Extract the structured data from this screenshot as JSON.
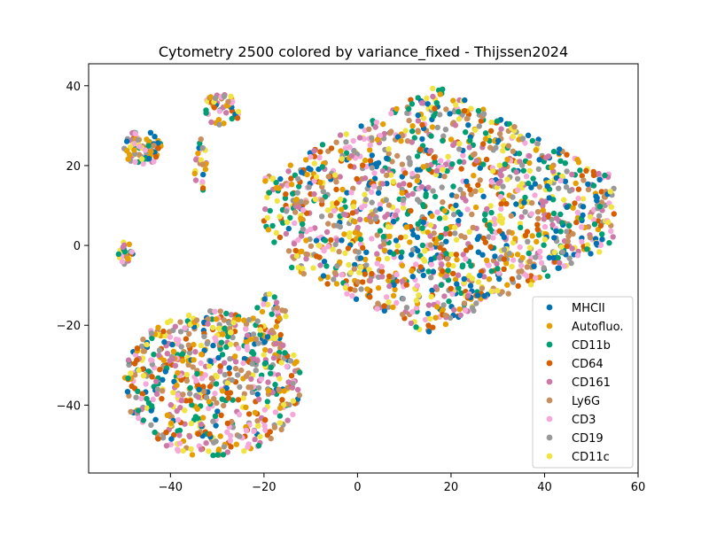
{
  "chart_data": {
    "type": "scatter",
    "title": "Cytometry 2500 colored by variance_fixed - Thijssen2024",
    "xlabel": "",
    "ylabel": "",
    "xlim": [
      -57.5,
      60
    ],
    "ylim": [
      -57,
      45.5
    ],
    "xticks": [
      -40,
      -20,
      0,
      20,
      40,
      60
    ],
    "yticks": [
      -40,
      -20,
      0,
      20,
      40
    ],
    "xtick_labels": [
      "−40",
      "−20",
      "0",
      "20",
      "40",
      "60"
    ],
    "ytick_labels": [
      "−40",
      "−20",
      "0",
      "20",
      "40"
    ],
    "grid": false,
    "legend_position": "lower-right",
    "series": [
      {
        "name": "MHCII",
        "color": "#0072B2"
      },
      {
        "name": "Autofluo.",
        "color": "#E69F00"
      },
      {
        "name": "CD11b",
        "color": "#009E73"
      },
      {
        "name": "CD64",
        "color": "#D55E00"
      },
      {
        "name": "CD161",
        "color": "#CC79A7"
      },
      {
        "name": "Ly6G",
        "color": "#C88E5C"
      },
      {
        "name": "CD3",
        "color": "#F5A9DA"
      },
      {
        "name": "CD19",
        "color": "#999999"
      },
      {
        "name": "CD11c",
        "color": "#F0E442"
      }
    ],
    "clusters_approx": [
      {
        "label": "main",
        "x_range": [
          -20,
          55
        ],
        "y_range": [
          -23,
          40
        ],
        "n": 1500
      },
      {
        "label": "lower-left",
        "x_range": [
          -50,
          -12
        ],
        "y_range": [
          -53,
          -16
        ],
        "n": 650
      },
      {
        "label": "upper-left-1",
        "x_range": [
          -50,
          -42
        ],
        "y_range": [
          20,
          29
        ],
        "n": 80
      },
      {
        "label": "upper-left-2",
        "x_range": [
          -33,
          -25
        ],
        "y_range": [
          30,
          38
        ],
        "n": 50
      },
      {
        "label": "upper-left-3",
        "x_range": [
          -35,
          -32
        ],
        "y_range": [
          13,
          27
        ],
        "n": 25
      },
      {
        "label": "left-small",
        "x_range": [
          -52,
          -48
        ],
        "y_range": [
          -5,
          1
        ],
        "n": 25
      },
      {
        "label": "small-right-of-lower",
        "x_range": [
          -22,
          -15
        ],
        "y_range": [
          -25,
          -12
        ],
        "n": 40
      }
    ]
  }
}
